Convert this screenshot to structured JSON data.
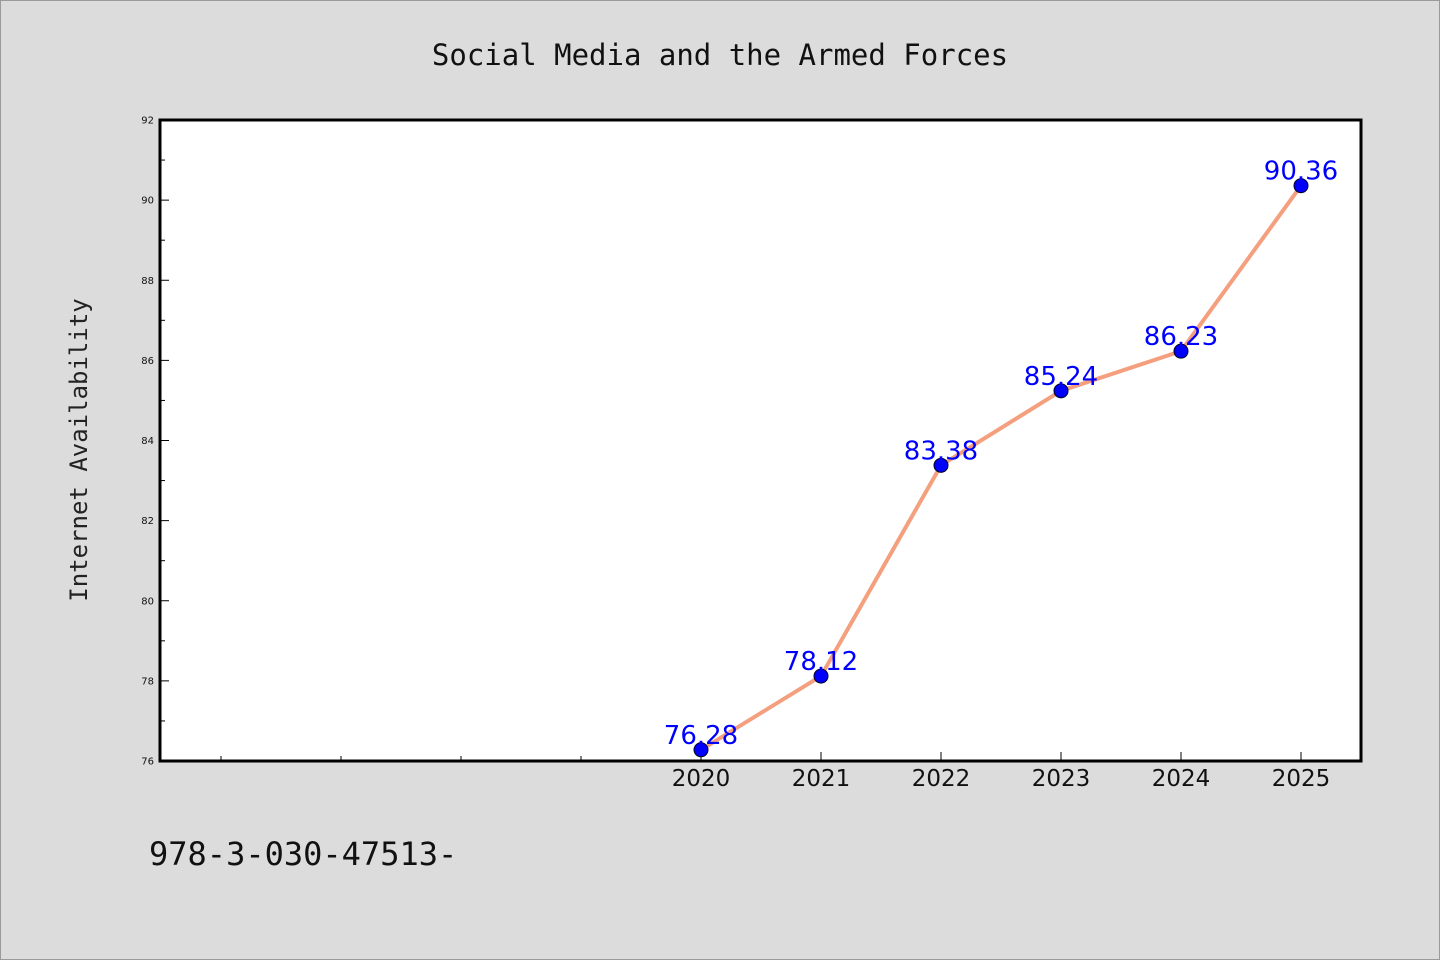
{
  "chart_data": {
    "type": "line",
    "title": "Social Media and the Armed Forces",
    "xlabel": "",
    "ylabel": "Internet Availability",
    "categories": [
      "2020",
      "2021",
      "2022",
      "2023",
      "2024",
      "2025"
    ],
    "series": [
      {
        "values": [
          76.28,
          78.12,
          83.38,
          85.24,
          86.23,
          90.36
        ],
        "labels": [
          "76.28",
          "78.12",
          "83.38",
          "85.24",
          "86.23",
          "90.36"
        ],
        "line_color": "#f4a07e",
        "marker_color": "#0000ff"
      }
    ],
    "ylim": [
      76,
      92
    ],
    "yticks": [
      "76",
      "78",
      "80",
      "82",
      "84",
      "86",
      "88",
      "90",
      "92"
    ],
    "grid": false,
    "legend": "none"
  },
  "footer": {
    "text": "978-3-030-47513-"
  },
  "colors": {
    "background": "#dcdcdc",
    "plot_background": "#ffffff",
    "axis": "#000000",
    "label": "#0000ff"
  }
}
